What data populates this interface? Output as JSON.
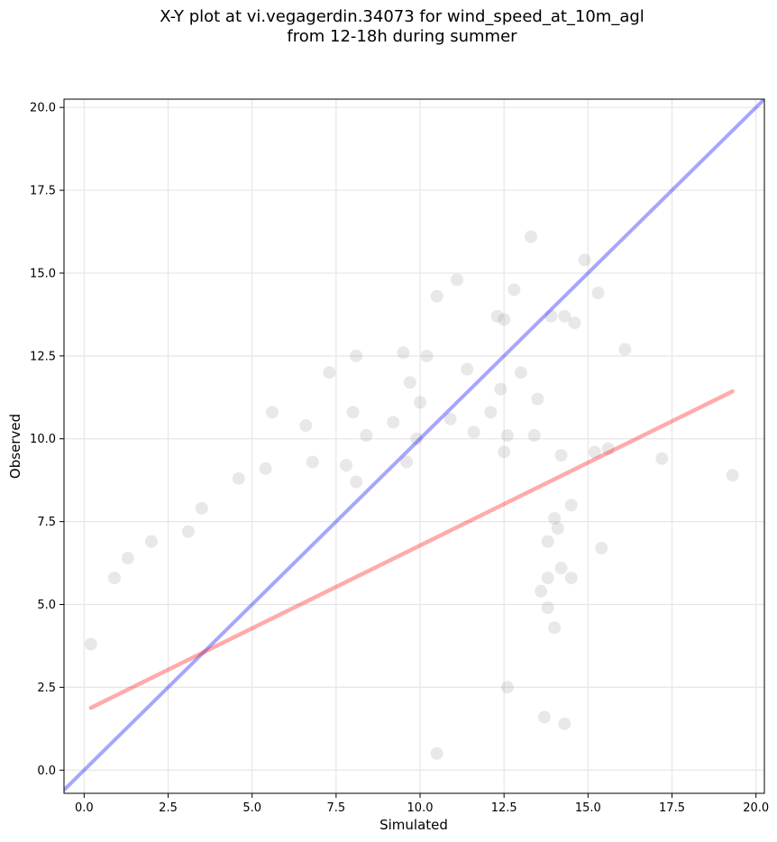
{
  "chart_data": {
    "type": "scatter",
    "title": "X-Y plot at vi.vegagerdin.34073 for wind_speed_at_10m_agl",
    "subtitle": "from 12-18h during summer",
    "xlabel": "Simulated",
    "ylabel": "Observed",
    "xlim": [
      -0.6,
      20.25
    ],
    "ylim": [
      -0.7,
      20.25
    ],
    "x_ticks": [
      0.0,
      2.5,
      5.0,
      7.5,
      10.0,
      12.5,
      15.0,
      17.5,
      20.0
    ],
    "x_tick_labels": [
      "0.0",
      "2.5",
      "5.0",
      "7.5",
      "10.0",
      "12.5",
      "15.0",
      "17.5",
      "20.0"
    ],
    "y_ticks": [
      0.0,
      2.5,
      5.0,
      7.5,
      10.0,
      12.5,
      15.0,
      17.5,
      20.0
    ],
    "y_tick_labels": [
      "0.0",
      "2.5",
      "5.0",
      "7.5",
      "10.0",
      "12.5",
      "15.0",
      "17.5",
      "20.0"
    ],
    "grid": true,
    "colors": {
      "points": "#808080",
      "identity_line": "#0000ff",
      "fit_line": "#ff0000"
    },
    "points": [
      [
        0.2,
        3.8
      ],
      [
        13.3,
        16.1
      ],
      [
        14.9,
        15.4
      ],
      [
        11.1,
        14.8
      ],
      [
        10.5,
        14.3
      ],
      [
        15.3,
        14.4
      ],
      [
        12.8,
        14.5
      ],
      [
        13.9,
        13.7
      ],
      [
        14.3,
        13.7
      ],
      [
        14.6,
        13.5
      ],
      [
        12.3,
        13.7
      ],
      [
        12.5,
        13.6
      ],
      [
        16.1,
        12.7
      ],
      [
        9.5,
        12.6
      ],
      [
        7.3,
        12.0
      ],
      [
        8.1,
        12.5
      ],
      [
        11.4,
        12.1
      ],
      [
        13.0,
        12.0
      ],
      [
        10.2,
        12.5
      ],
      [
        12.4,
        11.5
      ],
      [
        13.5,
        11.2
      ],
      [
        9.7,
        11.7
      ],
      [
        5.6,
        10.8
      ],
      [
        6.6,
        10.4
      ],
      [
        8.0,
        10.8
      ],
      [
        10.0,
        11.1
      ],
      [
        10.9,
        10.6
      ],
      [
        9.2,
        10.5
      ],
      [
        12.1,
        10.8
      ],
      [
        12.6,
        10.1
      ],
      [
        11.6,
        10.2
      ],
      [
        8.4,
        10.1
      ],
      [
        9.9,
        10.0
      ],
      [
        12.5,
        9.6
      ],
      [
        13.4,
        10.1
      ],
      [
        14.2,
        9.5
      ],
      [
        15.6,
        9.7
      ],
      [
        17.2,
        9.4
      ],
      [
        19.3,
        8.9
      ],
      [
        15.2,
        9.6
      ],
      [
        14.0,
        7.6
      ],
      [
        14.5,
        8.0
      ],
      [
        14.1,
        7.3
      ],
      [
        13.8,
        6.9
      ],
      [
        15.4,
        6.7
      ],
      [
        14.2,
        6.1
      ],
      [
        14.5,
        5.8
      ],
      [
        13.8,
        5.8
      ],
      [
        13.6,
        5.4
      ],
      [
        14.0,
        4.3
      ],
      [
        13.8,
        4.9
      ],
      [
        12.6,
        2.5
      ],
      [
        13.7,
        1.6
      ],
      [
        14.3,
        1.4
      ],
      [
        10.5,
        0.5
      ],
      [
        4.6,
        8.8
      ],
      [
        3.5,
        7.9
      ],
      [
        5.4,
        9.1
      ],
      [
        6.8,
        9.3
      ],
      [
        7.8,
        9.2
      ],
      [
        8.1,
        8.7
      ],
      [
        9.6,
        9.3
      ],
      [
        3.1,
        7.2
      ],
      [
        2.0,
        6.9
      ],
      [
        1.3,
        6.4
      ],
      [
        0.9,
        5.8
      ]
    ],
    "fit_line": {
      "x": [
        0.2,
        19.3
      ],
      "y": [
        1.88,
        11.43
      ]
    },
    "identity_line": {
      "x": [
        -0.6,
        20.25
      ],
      "y": [
        -0.6,
        20.25
      ]
    }
  }
}
